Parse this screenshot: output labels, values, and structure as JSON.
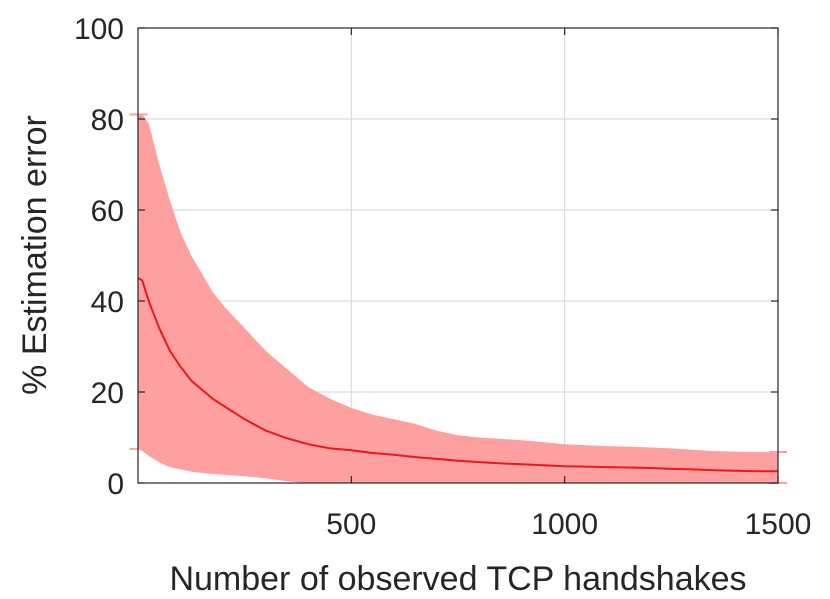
{
  "chart_data": {
    "type": "line",
    "title": "",
    "xlabel": "Number of observed TCP handshakes",
    "ylabel": "% Estimation error",
    "xlim": [
      0,
      1500
    ],
    "ylim": [
      0,
      100
    ],
    "x_ticks": [
      {
        "value": 500,
        "label": "500"
      },
      {
        "value": 1000,
        "label": "1000"
      },
      {
        "value": 1500,
        "label": "1500"
      }
    ],
    "y_ticks": [
      {
        "value": 0,
        "label": "0"
      },
      {
        "value": 20,
        "label": "20"
      },
      {
        "value": 40,
        "label": "40"
      },
      {
        "value": 60,
        "label": "60"
      },
      {
        "value": 80,
        "label": "80"
      },
      {
        "value": 100,
        "label": "100"
      }
    ],
    "grid": true,
    "legend": "none",
    "colors": {
      "line": "#e8191b",
      "band": "#ffa0a0",
      "grid": "#dcdcdc",
      "axis": "#262626"
    },
    "series": [
      {
        "x": [
          1,
          10,
          25,
          50,
          75,
          100,
          125,
          150,
          175,
          200,
          250,
          300,
          350,
          400,
          450,
          500,
          550,
          600,
          650,
          700,
          750,
          800,
          850,
          900,
          950,
          1000,
          1050,
          1100,
          1150,
          1200,
          1250,
          1300,
          1350,
          1400,
          1450,
          1500
        ],
        "values": [
          45,
          44.5,
          40,
          34,
          29,
          25.5,
          22.5,
          20.5,
          18.5,
          17,
          14,
          11.5,
          9.8,
          8.5,
          7.6,
          7.2,
          6.6,
          6.2,
          5.7,
          5.3,
          4.9,
          4.6,
          4.3,
          4.1,
          3.9,
          3.7,
          3.6,
          3.5,
          3.4,
          3.3,
          3.1,
          3.0,
          2.8,
          2.7,
          2.6,
          2.6
        ],
        "upper": [
          81,
          81,
          79,
          70,
          62,
          55,
          50,
          46,
          42,
          39,
          34,
          29,
          25,
          21,
          18.5,
          16.5,
          15,
          14,
          13,
          11.5,
          10.5,
          10,
          9.7,
          9.4,
          9.0,
          8.5,
          8.3,
          8.1,
          8.0,
          7.8,
          7.6,
          7.3,
          7.0,
          6.9,
          6.8,
          6.8
        ],
        "lower": [
          7.5,
          7,
          6,
          4.5,
          3.5,
          3,
          2.5,
          2.2,
          2,
          1.8,
          1.5,
          1,
          0.4,
          0,
          0,
          0,
          0,
          0,
          0,
          0,
          0,
          0,
          0,
          0,
          0,
          0,
          0,
          0,
          0,
          0,
          0,
          0,
          0,
          0,
          0,
          0
        ]
      }
    ]
  }
}
